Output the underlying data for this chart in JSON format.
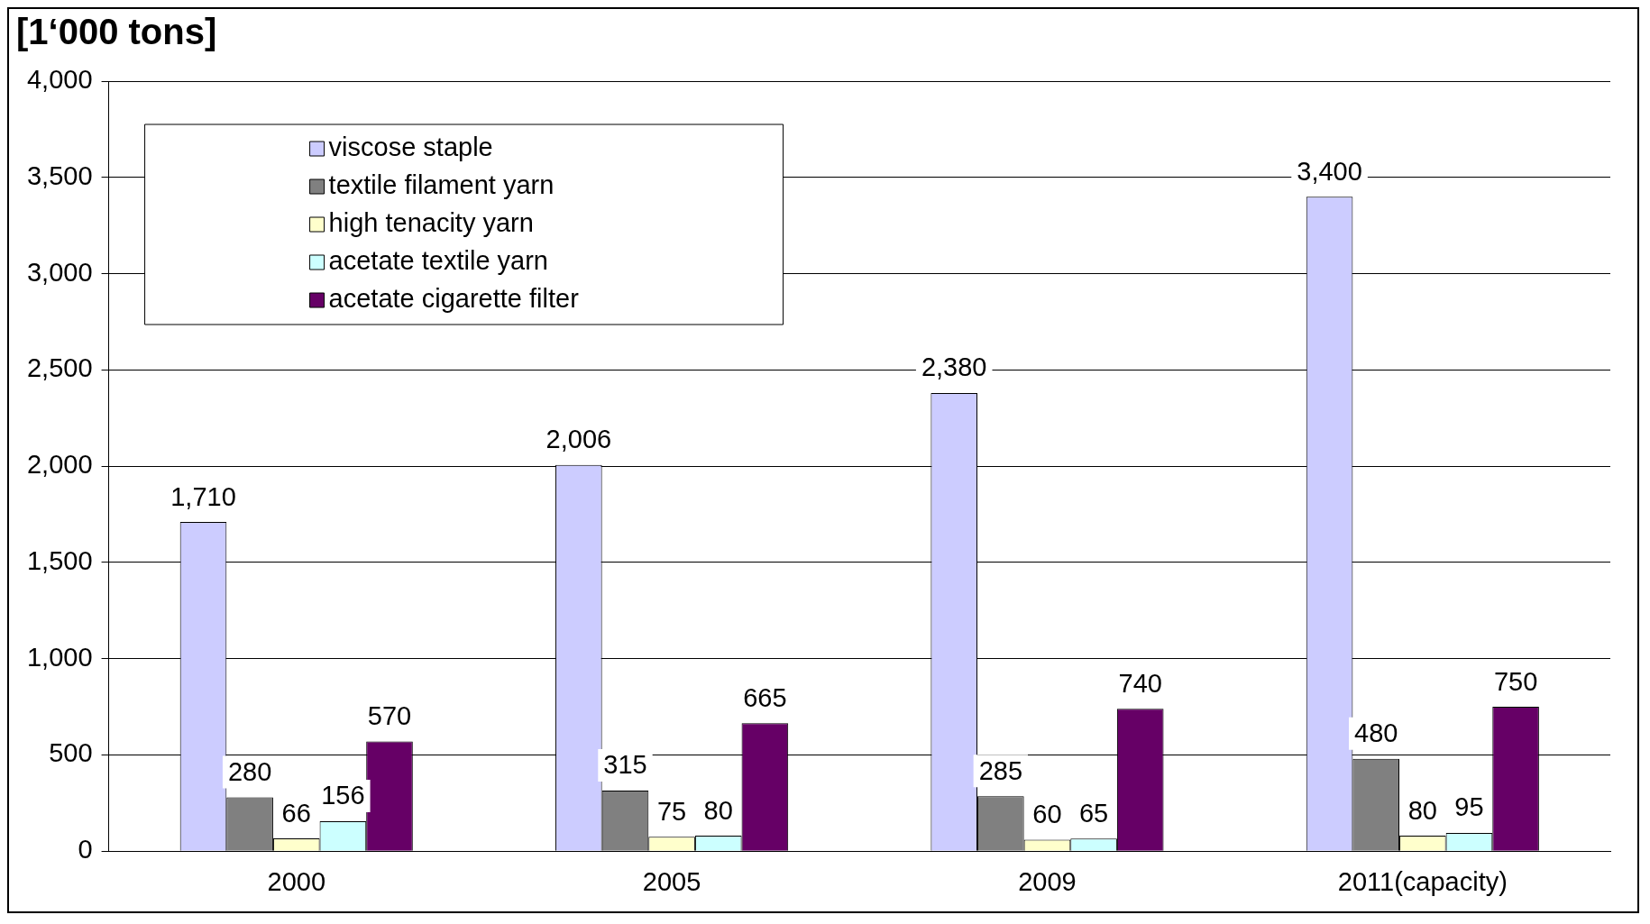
{
  "chart_data": {
    "type": "bar",
    "ylabel": "[1‘000 tons]",
    "categories": [
      "2000",
      "2005",
      "2009",
      "2011(capacity)"
    ],
    "series": [
      {
        "name": "viscose staple",
        "color": "#ccccff",
        "values": [
          1710,
          2006,
          2380,
          3400
        ],
        "value_labels": [
          "1,710",
          "2,006",
          "2,380",
          "3,400"
        ]
      },
      {
        "name": "textile filament yarn",
        "color": "#808080",
        "values": [
          280,
          315,
          285,
          480
        ],
        "value_labels": [
          "280",
          "315",
          "285",
          "480"
        ]
      },
      {
        "name": "high tenacity yarn",
        "color": "#ffffcc",
        "values": [
          66,
          75,
          60,
          80
        ],
        "value_labels": [
          "66",
          "75",
          "60",
          "80"
        ]
      },
      {
        "name": "acetate textile yarn",
        "color": "#ccffff",
        "values": [
          156,
          80,
          65,
          95
        ],
        "value_labels": [
          "156",
          "80",
          "65",
          "95"
        ]
      },
      {
        "name": "acetate cigarette filter",
        "color": "#660066",
        "values": [
          570,
          665,
          740,
          750
        ],
        "value_labels": [
          "570",
          "665",
          "740",
          "750"
        ]
      }
    ],
    "ylim": [
      0,
      4000
    ],
    "yticks": [
      {
        "value": 0,
        "label": "0"
      },
      {
        "value": 500,
        "label": "500"
      },
      {
        "value": 1000,
        "label": "1,000"
      },
      {
        "value": 1500,
        "label": "1,500"
      },
      {
        "value": 2000,
        "label": "2,000"
      },
      {
        "value": 2500,
        "label": "2,500"
      },
      {
        "value": 3000,
        "label": "3,000"
      },
      {
        "value": 3500,
        "label": "3,500"
      },
      {
        "value": 4000,
        "label": "4,000"
      }
    ],
    "grid": "y",
    "legend": "top left"
  }
}
